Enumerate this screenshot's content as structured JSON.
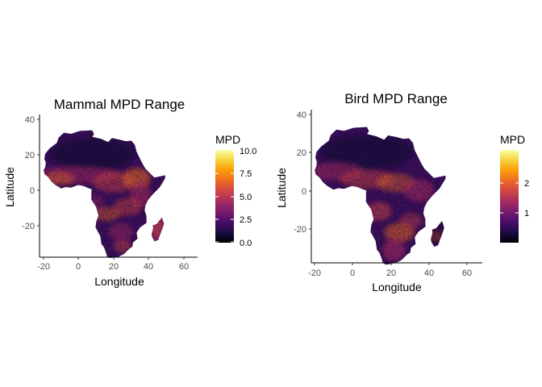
{
  "colors": {
    "inferno": [
      "#000004",
      "#1b0c41",
      "#4a0c6b",
      "#781c6d",
      "#a52c60",
      "#cf4446",
      "#ed6925",
      "#fb9b06",
      "#f7d13d",
      "#fcffa4"
    ]
  },
  "panels": [
    {
      "title": "Mammal MPD Range",
      "xlabel": "Longitude",
      "ylabel": "Latitude",
      "x_ticks": [
        "-20",
        "0",
        "20",
        "40",
        "60"
      ],
      "y_ticks": [
        "40",
        "20",
        "0",
        "-20"
      ],
      "legend": {
        "title": "MPD",
        "labels": [
          "10.0",
          "7.5",
          "5.0",
          "2.5",
          "0.0"
        ]
      }
    },
    {
      "title": "Bird MPD Range",
      "xlabel": "Longitude",
      "ylabel": "Latitude",
      "x_ticks": [
        "-20",
        "0",
        "20",
        "40",
        "60"
      ],
      "y_ticks": [
        "40",
        "20",
        "0",
        "-20"
      ],
      "legend": {
        "title": "MPD",
        "labels": [
          "2",
          "1"
        ]
      }
    }
  ],
  "chart_data": [
    {
      "type": "heatmap",
      "title": "Mammal MPD Range",
      "xlabel": "Longitude",
      "ylabel": "Latitude",
      "xlim": [
        -22,
        68
      ],
      "ylim": [
        -38,
        41
      ],
      "x_ticks": [
        -20,
        0,
        20,
        40,
        60
      ],
      "y_ticks": [
        40,
        20,
        0,
        -20
      ],
      "colorscale": "inferno",
      "legend": {
        "title": "MPD",
        "range": [
          0,
          10
        ],
        "breaks": [
          0.0,
          2.5,
          5.0,
          7.5,
          10.0
        ],
        "placement": "right"
      },
      "grid": false
    },
    {
      "type": "heatmap",
      "title": "Bird MPD Range",
      "xlabel": "Longitude",
      "ylabel": "Latitude",
      "xlim": [
        -22,
        68
      ],
      "ylim": [
        -38,
        41
      ],
      "x_ticks": [
        -20,
        0,
        20,
        40,
        60
      ],
      "y_ticks": [
        40,
        20,
        0,
        -20
      ],
      "colorscale": "inferno",
      "legend": {
        "title": "MPD",
        "range": [
          0.3,
          2.8
        ],
        "breaks": [
          1,
          2
        ],
        "placement": "right"
      },
      "grid": false
    }
  ]
}
